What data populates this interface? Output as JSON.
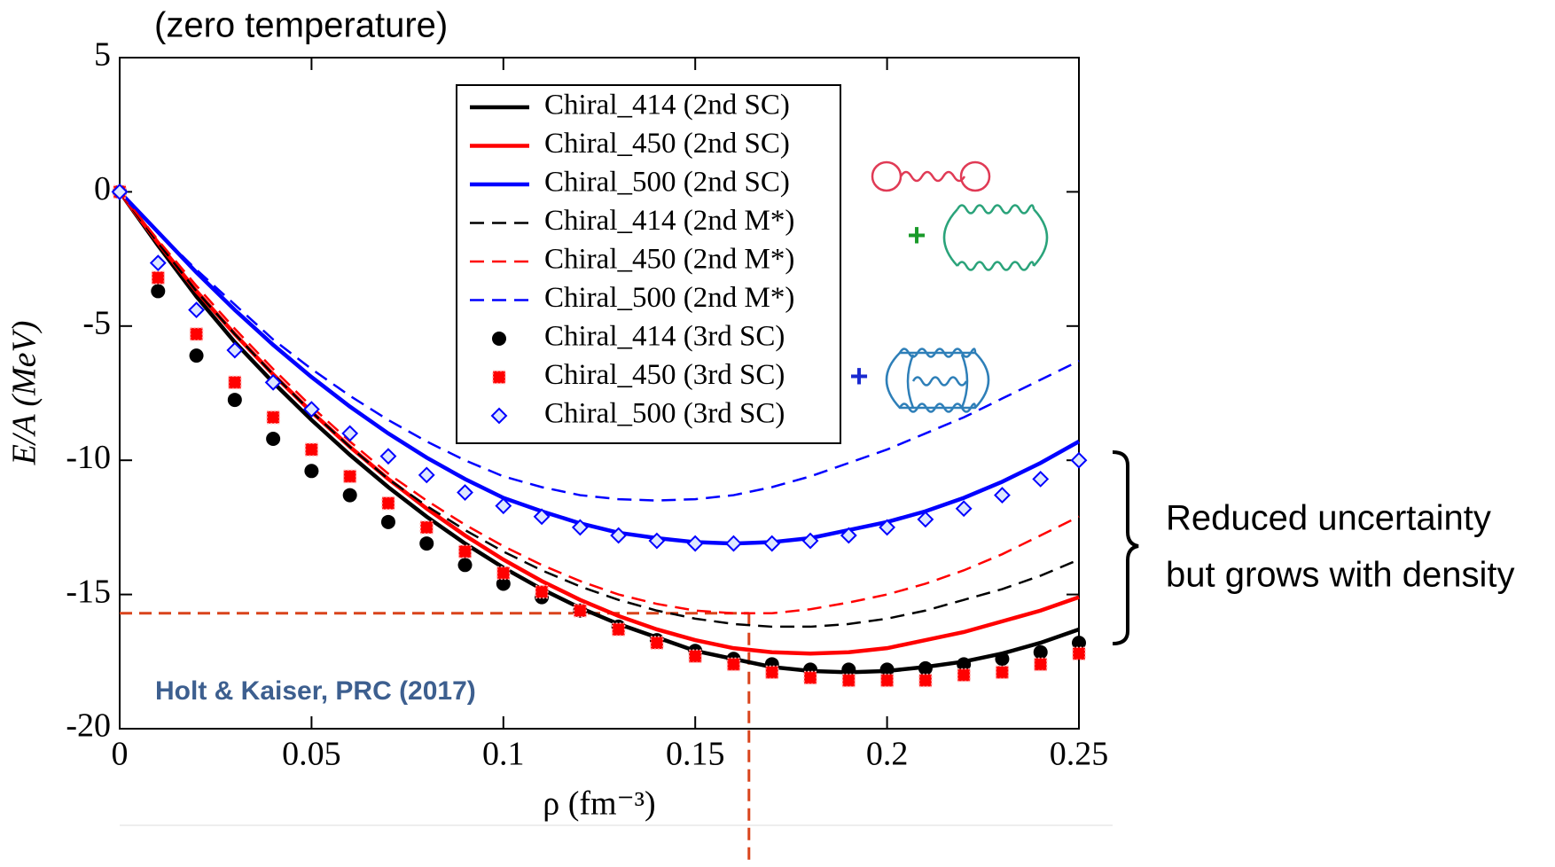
{
  "chart_data": {
    "type": "line",
    "title": "(zero temperature)",
    "x_label": "ρ (fm⁻³)",
    "y_label": "E/A (MeV)",
    "xlim": [
      0,
      0.25
    ],
    "ylim": [
      -20,
      5
    ],
    "xticks": [
      0,
      0.05,
      0.1,
      0.15,
      0.2,
      0.25
    ],
    "yticks": [
      5,
      0,
      -5,
      -10,
      -15,
      -20
    ],
    "x": [
      0,
      0.01,
      0.02,
      0.03,
      0.04,
      0.05,
      0.06,
      0.07,
      0.08,
      0.09,
      0.1,
      0.11,
      0.12,
      0.13,
      0.14,
      0.15,
      0.16,
      0.17,
      0.18,
      0.19,
      0.2,
      0.21,
      0.22,
      0.23,
      0.24,
      0.25
    ],
    "series": [
      {
        "name": "Chiral_414 (2nd SC)",
        "color": "#000000",
        "style": "solid",
        "values": [
          0,
          -2.0,
          -3.9,
          -5.6,
          -7.1,
          -8.5,
          -9.8,
          -11.0,
          -12.1,
          -13.1,
          -14.0,
          -14.8,
          -15.5,
          -16.1,
          -16.6,
          -17.1,
          -17.4,
          -17.7,
          -17.85,
          -17.9,
          -17.85,
          -17.7,
          -17.5,
          -17.2,
          -16.8,
          -16.3
        ]
      },
      {
        "name": "Chiral_450 (2nd SC)",
        "color": "#ff0000",
        "style": "solid",
        "values": [
          0,
          -1.9,
          -3.7,
          -5.3,
          -6.8,
          -8.2,
          -9.5,
          -10.7,
          -11.8,
          -12.8,
          -13.7,
          -14.5,
          -15.2,
          -15.8,
          -16.3,
          -16.7,
          -17.0,
          -17.15,
          -17.2,
          -17.15,
          -17.0,
          -16.7,
          -16.4,
          -16.0,
          -15.6,
          -15.1
        ]
      },
      {
        "name": "Chiral_500 (2nd SC)",
        "color": "#0000ff",
        "style": "solid",
        "values": [
          0,
          -1.5,
          -3.0,
          -4.4,
          -5.7,
          -6.9,
          -8.0,
          -9.0,
          -9.9,
          -10.7,
          -11.4,
          -11.9,
          -12.35,
          -12.7,
          -12.9,
          -13.05,
          -13.1,
          -13.05,
          -12.9,
          -12.6,
          -12.3,
          -11.9,
          -11.4,
          -10.8,
          -10.1,
          -9.3
        ]
      },
      {
        "name": "Chiral_414 (2nd M*)",
        "color": "#000000",
        "style": "dashed",
        "values": [
          0,
          -1.9,
          -3.7,
          -5.3,
          -6.8,
          -8.2,
          -9.5,
          -10.7,
          -11.7,
          -12.6,
          -13.4,
          -14.1,
          -14.7,
          -15.2,
          -15.6,
          -15.9,
          -16.1,
          -16.2,
          -16.2,
          -16.1,
          -15.9,
          -15.6,
          -15.2,
          -14.8,
          -14.3,
          -13.7
        ]
      },
      {
        "name": "Chiral_450 (2nd M*)",
        "color": "#ff0000",
        "style": "dashed",
        "values": [
          0,
          -1.8,
          -3.5,
          -5.1,
          -6.6,
          -8.0,
          -9.3,
          -10.5,
          -11.5,
          -12.4,
          -13.2,
          -13.9,
          -14.5,
          -15.0,
          -15.35,
          -15.6,
          -15.7,
          -15.7,
          -15.55,
          -15.3,
          -15.0,
          -14.6,
          -14.1,
          -13.5,
          -12.8,
          -12.1
        ]
      },
      {
        "name": "Chiral_500 (2nd M*)",
        "color": "#0000ff",
        "style": "dashed",
        "values": [
          0,
          -1.5,
          -2.9,
          -4.2,
          -5.5,
          -6.6,
          -7.6,
          -8.5,
          -9.3,
          -10.0,
          -10.6,
          -11.0,
          -11.3,
          -11.45,
          -11.5,
          -11.45,
          -11.3,
          -11.0,
          -10.6,
          -10.1,
          -9.6,
          -9.0,
          -8.4,
          -7.7,
          -7.0,
          -6.3
        ]
      },
      {
        "name": "Chiral_414 (3rd SC)",
        "color": "#000000",
        "style": "marker",
        "marker": "circle",
        "values": [
          0,
          -3.7,
          -6.1,
          -7.75,
          -9.2,
          -10.4,
          -11.3,
          -12.3,
          -13.1,
          -13.9,
          -14.6,
          -15.1,
          -15.6,
          -16.2,
          -16.7,
          -17.1,
          -17.4,
          -17.6,
          -17.8,
          -17.8,
          -17.8,
          -17.75,
          -17.6,
          -17.4,
          -17.15,
          -16.8
        ]
      },
      {
        "name": "Chiral_450 (3rd SC)",
        "color": "#ff0000",
        "style": "marker",
        "marker": "square",
        "values": [
          0,
          -3.2,
          -5.3,
          -7.1,
          -8.4,
          -9.6,
          -10.6,
          -11.6,
          -12.5,
          -13.4,
          -14.2,
          -14.9,
          -15.6,
          -16.3,
          -16.8,
          -17.3,
          -17.6,
          -17.9,
          -18.1,
          -18.2,
          -18.2,
          -18.2,
          -18.0,
          -17.9,
          -17.6,
          -17.2
        ]
      },
      {
        "name": "Chiral_500 (3rd SC)",
        "color": "#0000ff",
        "style": "marker",
        "marker": "diamond",
        "values": [
          0,
          -2.65,
          -4.4,
          -5.9,
          -7.1,
          -8.1,
          -9.0,
          -9.85,
          -10.55,
          -11.2,
          -11.7,
          -12.1,
          -12.5,
          -12.8,
          -13.0,
          -13.1,
          -13.1,
          -13.1,
          -13.0,
          -12.8,
          -12.5,
          -12.2,
          -11.8,
          -11.3,
          -10.7,
          -10.0
        ]
      }
    ],
    "saturation_point": {
      "x": 0.164,
      "y": -15.7,
      "color": "#d9441c"
    },
    "citation": "Holt & Kaiser, PRC (2017)",
    "note_lines": [
      "Reduced uncertainty",
      "but grows with density"
    ],
    "diagram_signs": [
      "+",
      "+"
    ]
  }
}
